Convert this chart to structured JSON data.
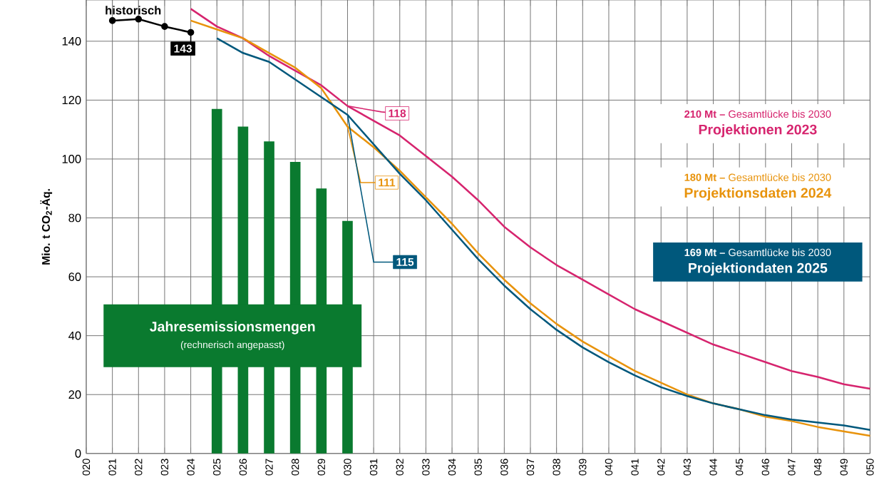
{
  "chart_data": {
    "type": "line",
    "ylabel": "Mio. t CO$_{2}$-Äq.",
    "categories": [
      "020",
      "021",
      "022",
      "023",
      "024",
      "025",
      "026",
      "027",
      "028",
      "029",
      "030",
      "031",
      "032",
      "033",
      "034",
      "035",
      "036",
      "037",
      "038",
      "039",
      "040",
      "041",
      "042",
      "043",
      "044",
      "045",
      "046",
      "047",
      "048",
      "049",
      "050"
    ],
    "ylim": [
      0,
      154
    ],
    "yticks": [
      0,
      20,
      40,
      60,
      80,
      100,
      120,
      140
    ],
    "grid": true,
    "series": [
      {
        "name": "historisch",
        "color": "#000000",
        "marker": "circle",
        "values": [
          null,
          147,
          147.5,
          145,
          143,
          null,
          null,
          null,
          null,
          null,
          null,
          null,
          null,
          null,
          null,
          null,
          null,
          null,
          null,
          null,
          null,
          null,
          null,
          null,
          null,
          null,
          null,
          null,
          null,
          null,
          null
        ]
      },
      {
        "name": "Jahresemissionsmengen",
        "type": "bar",
        "color": "#0a7a2f",
        "values": [
          null,
          null,
          null,
          null,
          null,
          117,
          111,
          106,
          99,
          90,
          79,
          null,
          null,
          null,
          null,
          null,
          null,
          null,
          null,
          null,
          null,
          null,
          null,
          null,
          null,
          null,
          null,
          null,
          null,
          null,
          null
        ]
      },
      {
        "name": "Projektionen 2023",
        "color": "#d6246e",
        "values": [
          null,
          null,
          null,
          null,
          151,
          145,
          141,
          135,
          130,
          125,
          118,
          113,
          108,
          101,
          94,
          86,
          77,
          70,
          64,
          59,
          54,
          49,
          45,
          41,
          37,
          34,
          31,
          28,
          26,
          23.5,
          22
        ]
      },
      {
        "name": "Projektionsdaten 2024",
        "color": "#e8930c",
        "values": [
          null,
          null,
          null,
          null,
          147,
          144,
          141,
          136,
          131,
          124,
          111,
          104,
          96,
          87,
          78,
          68,
          59,
          51,
          44,
          38,
          33,
          28,
          24,
          20,
          17,
          15,
          12.5,
          11,
          9,
          7.5,
          6
        ]
      },
      {
        "name": "Projektiondaten 2025",
        "color": "#00587c",
        "values": [
          null,
          null,
          null,
          null,
          null,
          141,
          136,
          133,
          127,
          121,
          115,
          105,
          95,
          86,
          76,
          66,
          57,
          49,
          42,
          36,
          31,
          26.5,
          22.5,
          19.5,
          17,
          15,
          13,
          11.5,
          10.5,
          9.5,
          8
        ]
      }
    ],
    "annotations": [
      {
        "text": "143",
        "x": "024",
        "y": 143
      },
      {
        "text": "118",
        "x": "030",
        "y": 118
      },
      {
        "text": "111",
        "x": "030",
        "y": 111
      },
      {
        "text": "115",
        "x": "030",
        "y": 115
      },
      "**210 Mt –** Gesamtlücke bis 2030",
      "**180 Mt –** Gesamtlücke bis 2030",
      "**169 Mt –** Gesamtlücke bis 2030",
      "(rechnerisch angepasst)"
    ]
  }
}
